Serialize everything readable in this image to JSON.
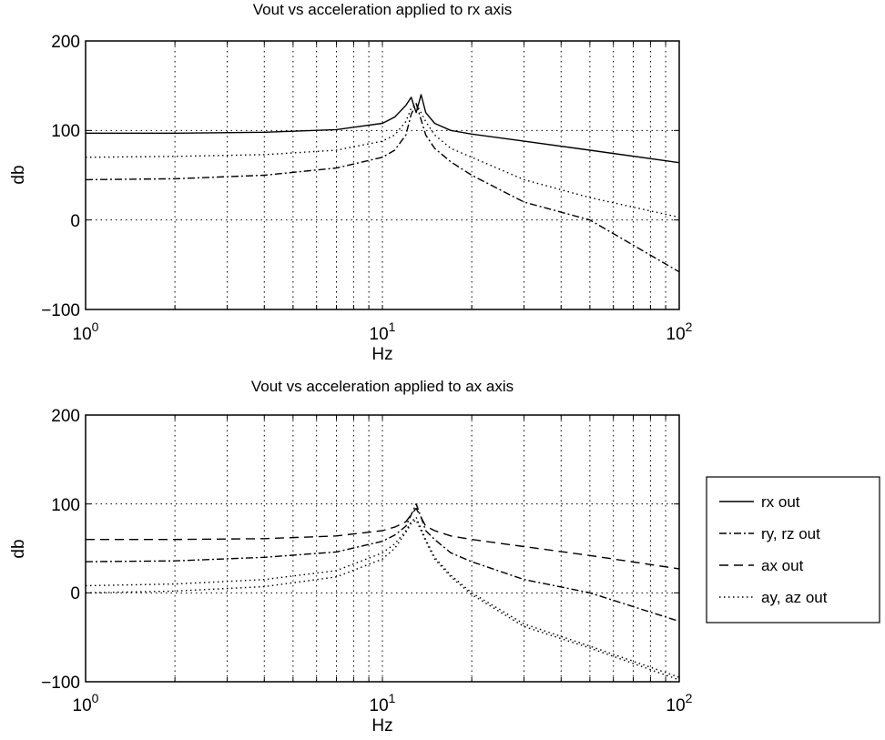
{
  "chart_data": [
    {
      "type": "line",
      "title": "Vout vs acceleration applied to rx axis",
      "xlabel": "Hz",
      "ylabel": "db",
      "xscale": "log",
      "xlim": [
        1,
        100
      ],
      "ylim": [
        -100,
        200
      ],
      "x_ticks": [
        {
          "base": "10",
          "exp": "0"
        },
        {
          "base": "10",
          "exp": "1"
        },
        {
          "base": "10",
          "exp": "2"
        }
      ],
      "y_ticks": [
        "200",
        "100",
        "0",
        "−100"
      ],
      "grid": true,
      "series": [
        {
          "name": "rx out",
          "style": "solid",
          "x": [
            1,
            2,
            4,
            7,
            10,
            11,
            12,
            12.5,
            13,
            13.5,
            14,
            15,
            17,
            20,
            30,
            50,
            100
          ],
          "y": [
            97,
            97,
            98,
            101,
            108,
            115,
            128,
            137,
            120,
            140,
            120,
            108,
            100,
            96,
            88,
            78,
            64
          ]
        },
        {
          "name": "ry, rz out",
          "style": "dashdot",
          "x": [
            1,
            2,
            4,
            7,
            10,
            11,
            12,
            12.5,
            13,
            14,
            15,
            17,
            20,
            30,
            50,
            100
          ],
          "y": [
            45,
            46,
            50,
            58,
            70,
            78,
            95,
            118,
            130,
            95,
            80,
            65,
            50,
            20,
            0,
            -58
          ]
        },
        {
          "name": "ay, az out",
          "style": "dotted",
          "x": [
            1,
            2,
            4,
            7,
            10,
            11,
            12,
            12.5,
            13,
            14,
            15,
            17,
            20,
            30,
            50,
            100
          ],
          "y": [
            70,
            71,
            73,
            78,
            88,
            95,
            110,
            125,
            130,
            110,
            95,
            80,
            70,
            45,
            25,
            3
          ]
        }
      ]
    },
    {
      "type": "line",
      "title": "Vout vs acceleration applied to ax axis",
      "xlabel": "Hz",
      "ylabel": "db",
      "xscale": "log",
      "xlim": [
        1,
        100
      ],
      "ylim": [
        -100,
        200
      ],
      "x_ticks": [
        {
          "base": "10",
          "exp": "0"
        },
        {
          "base": "10",
          "exp": "1"
        },
        {
          "base": "10",
          "exp": "2"
        }
      ],
      "y_ticks": [
        "200",
        "100",
        "0",
        "−100"
      ],
      "grid": true,
      "series": [
        {
          "name": "ry, rz out",
          "style": "dashdot",
          "x": [
            1,
            2,
            4,
            7,
            10,
            11,
            12,
            13,
            13.5,
            14,
            15,
            17,
            20,
            30,
            50,
            100
          ],
          "y": [
            35,
            36,
            40,
            46,
            58,
            65,
            75,
            100,
            85,
            70,
            60,
            45,
            35,
            15,
            0,
            -32
          ]
        },
        {
          "name": "ax out",
          "style": "dashed",
          "x": [
            1,
            2,
            4,
            7,
            10,
            11,
            12,
            12.5,
            13,
            14,
            15,
            17,
            20,
            30,
            50,
            100
          ],
          "y": [
            60,
            60,
            61,
            64,
            70,
            74,
            80,
            88,
            95,
            75,
            70,
            64,
            60,
            52,
            42,
            27
          ]
        },
        {
          "name": "ay, az out",
          "style": "dotted",
          "x": [
            1,
            2,
            4,
            7,
            10,
            11,
            12,
            12.5,
            13,
            14,
            15,
            17,
            20,
            30,
            50,
            100
          ],
          "y": [
            8,
            10,
            15,
            25,
            45,
            55,
            70,
            80,
            85,
            60,
            40,
            20,
            0,
            -35,
            -60,
            -95
          ]
        },
        {
          "name": "ay, az out",
          "style": "dotted",
          "x": [
            1,
            2,
            4,
            7,
            10,
            11,
            12,
            12.5,
            13,
            14,
            15,
            17,
            20,
            30,
            50,
            100
          ],
          "y": [
            0,
            2,
            7,
            18,
            38,
            50,
            68,
            78,
            82,
            58,
            38,
            18,
            -2,
            -38,
            -62,
            -98
          ]
        }
      ]
    }
  ],
  "legend": {
    "placement": "right",
    "items": [
      {
        "label": "rx out",
        "style": "solid"
      },
      {
        "label": "ry, rz out",
        "style": "dashdot"
      },
      {
        "label": "ax out",
        "style": "dashed"
      },
      {
        "label": "ay, az out",
        "style": "dotted"
      }
    ]
  }
}
